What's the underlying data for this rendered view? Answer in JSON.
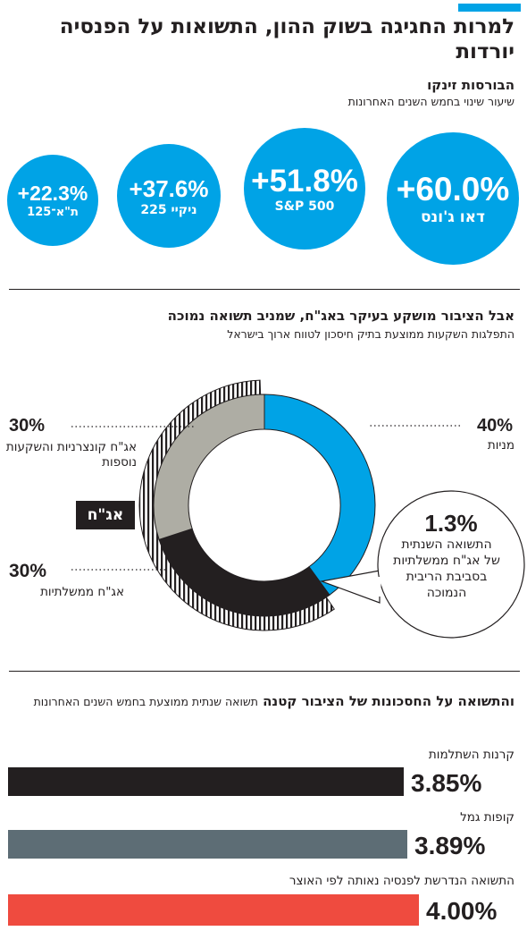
{
  "header": {
    "title": "למרות החגיגה בשוק ההון, התשואות על הפנסיה יורדות",
    "stocks_heading": "הבורסות זינקו",
    "stocks_note": "שיעור שינוי בחמש השנים האחרונות"
  },
  "section2": {
    "heading": "אבל הציבור מושקע בעיקר באג\"ח, שמניב תשואה נמוכה",
    "note": "התפלגות השקעות ממוצעת בתיק חיסכון לטווח ארוך בישראל",
    "bond_tag": "אג\"ח"
  },
  "section3": {
    "heading": "והתשואה על החסכונות של הציבור קטנה",
    "note": "תשואה שנתית ממוצעת בחמש השנים האחרונות"
  },
  "colors": {
    "blue": "#00a3e6",
    "gray": "#aeada4",
    "black": "#231f20",
    "slate": "#5d6d75",
    "red": "#ef4b3f"
  },
  "chart_data": [
    {
      "type": "bubble",
      "categories": [
        "דאו ג'ונס",
        "S&P 500",
        "ניקיי 225",
        "ת\"א־125"
      ],
      "values": [
        60.0,
        51.8,
        37.6,
        22.3
      ],
      "value_labels": [
        "+60.0%",
        "+51.8%",
        "+37.6%",
        "+22.3%"
      ]
    },
    {
      "type": "pie",
      "categories": [
        "מניות",
        "אג\"ח ממשלתיות",
        "אג\"ח קונצרניות והשקעות נוספות"
      ],
      "values": [
        40,
        30,
        30
      ],
      "value_labels": [
        "40%",
        "30%",
        "30%"
      ],
      "annotation": {
        "value": "1.3%",
        "text": "התשואה השנתית של אג\"ח ממשלתיות בסביבת הריבית הנמוכה"
      }
    },
    {
      "type": "bar",
      "categories": [
        "קרנות השתלמות",
        "קופות גמל",
        "התשואה הנדרשת לפנסיה נאותה לפי האוצר"
      ],
      "values": [
        3.85,
        3.89,
        4.0
      ],
      "value_labels": [
        "3.85%",
        "3.89%",
        "4.00%"
      ]
    }
  ]
}
